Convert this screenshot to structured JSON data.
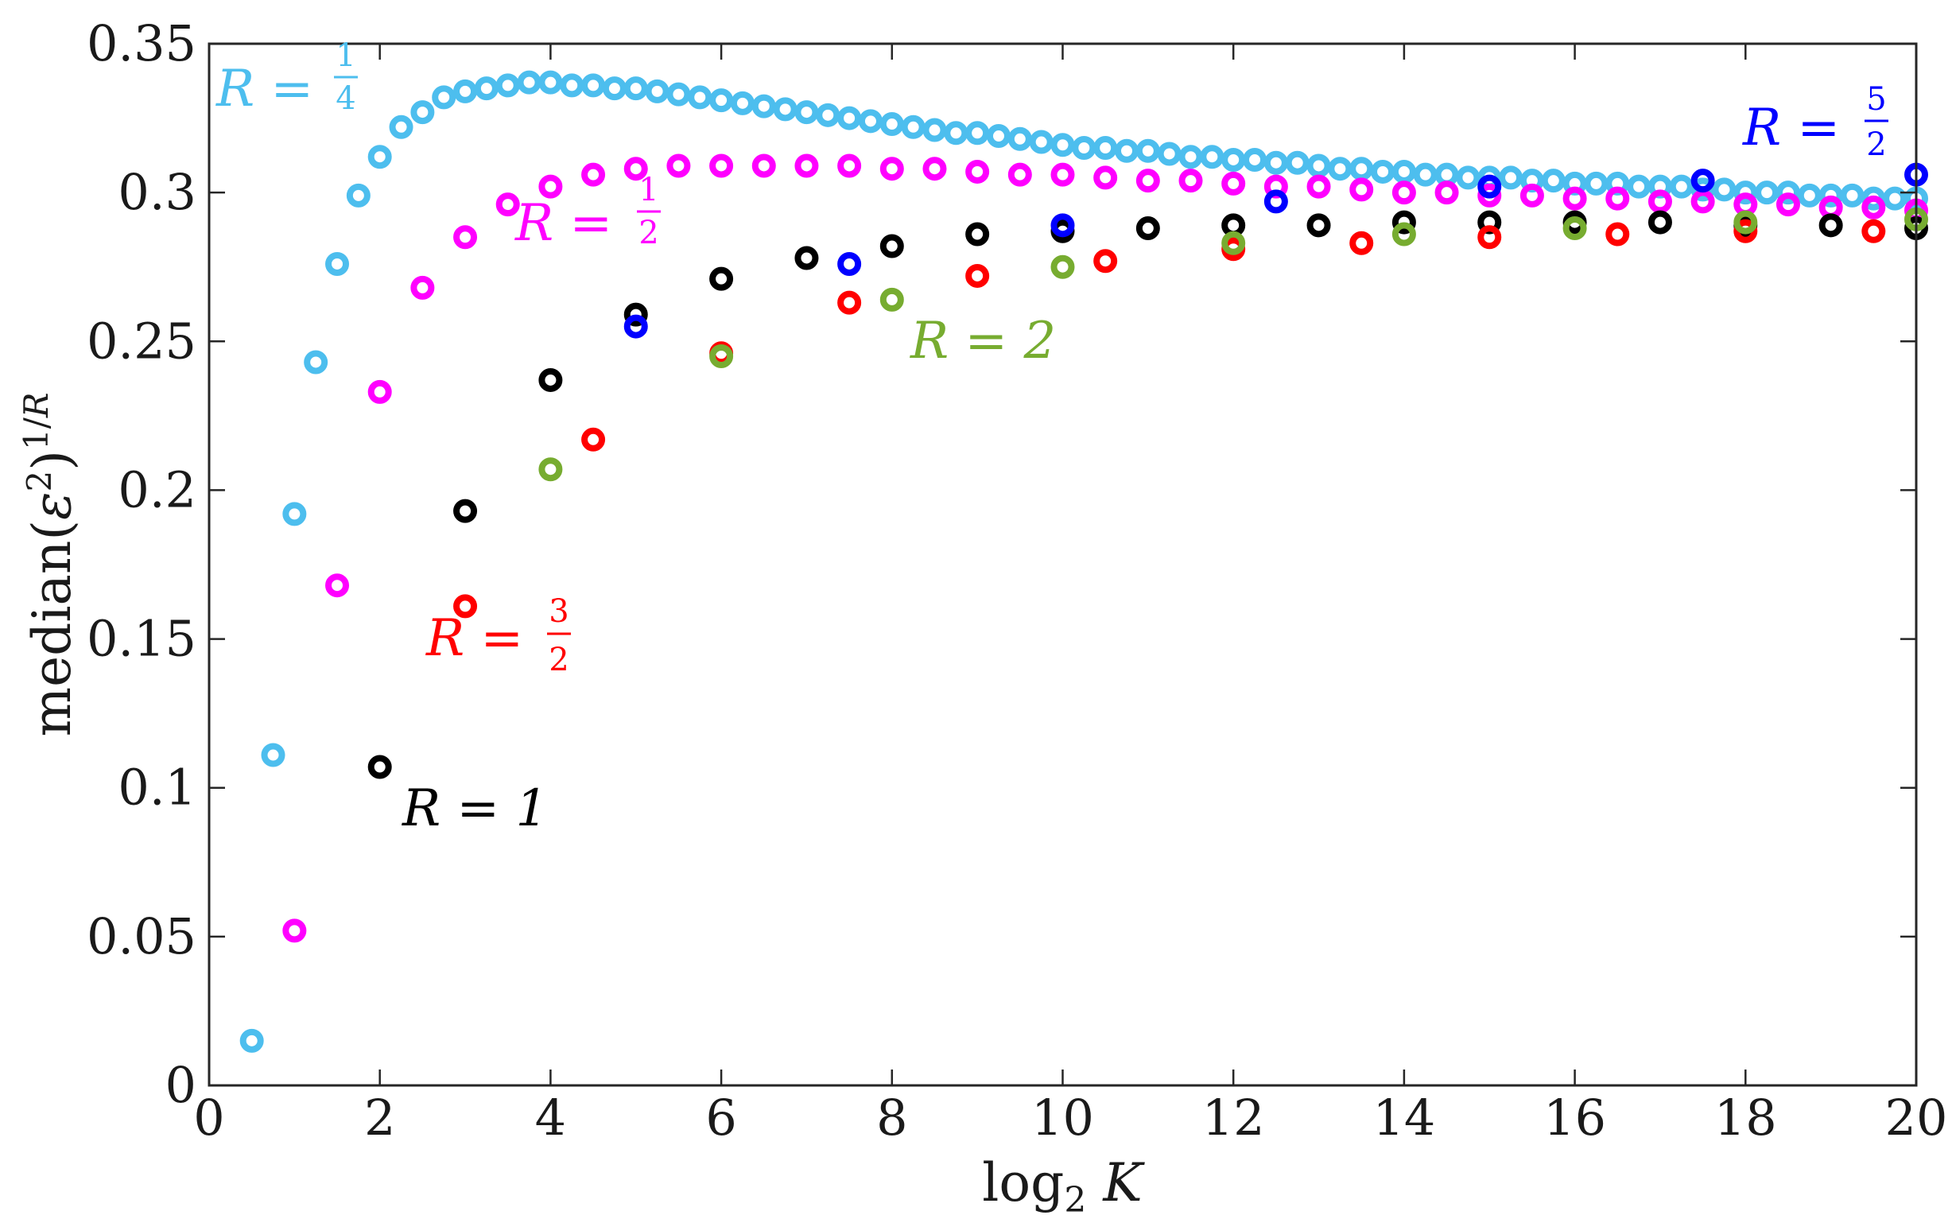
{
  "chart_data": {
    "type": "scatter",
    "title": "",
    "xlabel": "log₂ K",
    "ylabel": "median(ε²)^(1/R)",
    "xlim": [
      0,
      20
    ],
    "ylim": [
      0,
      0.35
    ],
    "x_ticks": [
      "0",
      "2",
      "4",
      "6",
      "8",
      "10",
      "12",
      "14",
      "16",
      "18",
      "20"
    ],
    "y_ticks": [
      "0",
      "0.05",
      "0.1",
      "0.15",
      "0.2",
      "0.25",
      "0.3",
      "0.35"
    ],
    "grid": false,
    "marker": "open-circle",
    "series": [
      {
        "name": "R = 1/4",
        "label_main": "R =",
        "label_num": "1",
        "label_den": "4",
        "color": "#4DBEEE",
        "points": [
          [
            0.5,
            0.015
          ],
          [
            0.75,
            0.111
          ],
          [
            1.0,
            0.192
          ],
          [
            1.25,
            0.243
          ],
          [
            1.5,
            0.276
          ],
          [
            1.75,
            0.299
          ],
          [
            2.0,
            0.312
          ],
          [
            2.25,
            0.322
          ],
          [
            2.5,
            0.327
          ],
          [
            2.75,
            0.332
          ],
          [
            3.0,
            0.334
          ],
          [
            3.25,
            0.335
          ],
          [
            3.5,
            0.336
          ],
          [
            3.75,
            0.337
          ],
          [
            4.0,
            0.337
          ],
          [
            4.25,
            0.336
          ],
          [
            4.5,
            0.336
          ],
          [
            4.75,
            0.335
          ],
          [
            5.0,
            0.335
          ],
          [
            5.25,
            0.334
          ],
          [
            5.5,
            0.333
          ],
          [
            5.75,
            0.332
          ],
          [
            6.0,
            0.331
          ],
          [
            6.25,
            0.33
          ],
          [
            6.5,
            0.329
          ],
          [
            6.75,
            0.328
          ],
          [
            7.0,
            0.327
          ],
          [
            7.25,
            0.326
          ],
          [
            7.5,
            0.325
          ],
          [
            7.75,
            0.324
          ],
          [
            8.0,
            0.323
          ],
          [
            8.25,
            0.322
          ],
          [
            8.5,
            0.321
          ],
          [
            8.75,
            0.32
          ],
          [
            9.0,
            0.32
          ],
          [
            9.25,
            0.319
          ],
          [
            9.5,
            0.318
          ],
          [
            9.75,
            0.317
          ],
          [
            10.0,
            0.316
          ],
          [
            10.25,
            0.315
          ],
          [
            10.5,
            0.315
          ],
          [
            10.75,
            0.314
          ],
          [
            11.0,
            0.314
          ],
          [
            11.25,
            0.313
          ],
          [
            11.5,
            0.312
          ],
          [
            11.75,
            0.312
          ],
          [
            12.0,
            0.311
          ],
          [
            12.25,
            0.311
          ],
          [
            12.5,
            0.31
          ],
          [
            12.75,
            0.31
          ],
          [
            13.0,
            0.309
          ],
          [
            13.25,
            0.308
          ],
          [
            13.5,
            0.308
          ],
          [
            13.75,
            0.307
          ],
          [
            14.0,
            0.307
          ],
          [
            14.25,
            0.306
          ],
          [
            14.5,
            0.306
          ],
          [
            14.75,
            0.305
          ],
          [
            15.0,
            0.305
          ],
          [
            15.25,
            0.305
          ],
          [
            15.5,
            0.304
          ],
          [
            15.75,
            0.304
          ],
          [
            16.0,
            0.303
          ],
          [
            16.25,
            0.303
          ],
          [
            16.5,
            0.303
          ],
          [
            16.75,
            0.302
          ],
          [
            17.0,
            0.302
          ],
          [
            17.25,
            0.302
          ],
          [
            17.5,
            0.301
          ],
          [
            17.75,
            0.301
          ],
          [
            18.0,
            0.3
          ],
          [
            18.25,
            0.3
          ],
          [
            18.5,
            0.3
          ],
          [
            18.75,
            0.299
          ],
          [
            19.0,
            0.299
          ],
          [
            19.25,
            0.299
          ],
          [
            19.5,
            0.298
          ],
          [
            19.75,
            0.298
          ],
          [
            20.0,
            0.298
          ]
        ]
      },
      {
        "name": "R = 1/2",
        "label_main": "R =",
        "label_num": "1",
        "label_den": "2",
        "color": "#FF00FF",
        "points": [
          [
            1.0,
            0.052
          ],
          [
            1.5,
            0.168
          ],
          [
            2.0,
            0.233
          ],
          [
            2.5,
            0.268
          ],
          [
            3.0,
            0.285
          ],
          [
            3.5,
            0.296
          ],
          [
            4.0,
            0.302
          ],
          [
            4.5,
            0.306
          ],
          [
            5.0,
            0.308
          ],
          [
            5.5,
            0.309
          ],
          [
            6.0,
            0.309
          ],
          [
            6.5,
            0.309
          ],
          [
            7.0,
            0.309
          ],
          [
            7.5,
            0.309
          ],
          [
            8.0,
            0.308
          ],
          [
            8.5,
            0.308
          ],
          [
            9.0,
            0.307
          ],
          [
            9.5,
            0.306
          ],
          [
            10.0,
            0.306
          ],
          [
            10.5,
            0.305
          ],
          [
            11.0,
            0.304
          ],
          [
            11.5,
            0.304
          ],
          [
            12.0,
            0.303
          ],
          [
            12.5,
            0.302
          ],
          [
            13.0,
            0.302
          ],
          [
            13.5,
            0.301
          ],
          [
            14.0,
            0.3
          ],
          [
            14.5,
            0.3
          ],
          [
            15.0,
            0.299
          ],
          [
            15.5,
            0.299
          ],
          [
            16.0,
            0.298
          ],
          [
            16.5,
            0.298
          ],
          [
            17.0,
            0.297
          ],
          [
            17.5,
            0.297
          ],
          [
            18.0,
            0.296
          ],
          [
            18.5,
            0.296
          ],
          [
            19.0,
            0.295
          ],
          [
            19.5,
            0.295
          ],
          [
            20.0,
            0.294
          ]
        ]
      },
      {
        "name": "R = 1",
        "label_main": "R = 1",
        "color": "#000000",
        "points": [
          [
            2,
            0.107
          ],
          [
            3,
            0.193
          ],
          [
            4,
            0.237
          ],
          [
            5,
            0.259
          ],
          [
            6,
            0.271
          ],
          [
            7,
            0.278
          ],
          [
            8,
            0.282
          ],
          [
            9,
            0.286
          ],
          [
            10,
            0.287
          ],
          [
            11,
            0.288
          ],
          [
            12,
            0.289
          ],
          [
            13,
            0.289
          ],
          [
            14,
            0.29
          ],
          [
            15,
            0.29
          ],
          [
            16,
            0.29
          ],
          [
            17,
            0.29
          ],
          [
            18,
            0.289
          ],
          [
            19,
            0.289
          ],
          [
            20,
            0.288
          ]
        ]
      },
      {
        "name": "R = 3/2",
        "label_main": "R =",
        "label_num": "3",
        "label_den": "2",
        "color": "#FF0000",
        "points": [
          [
            3.0,
            0.161
          ],
          [
            4.5,
            0.217
          ],
          [
            6.0,
            0.246
          ],
          [
            7.5,
            0.263
          ],
          [
            9.0,
            0.272
          ],
          [
            10.5,
            0.277
          ],
          [
            12.0,
            0.281
          ],
          [
            13.5,
            0.283
          ],
          [
            15.0,
            0.285
          ],
          [
            16.5,
            0.286
          ],
          [
            18.0,
            0.287
          ],
          [
            19.5,
            0.287
          ]
        ]
      },
      {
        "name": "R = 2",
        "label_main": "R = 2",
        "color": "#77AC30",
        "points": [
          [
            4,
            0.207
          ],
          [
            6,
            0.245
          ],
          [
            8,
            0.264
          ],
          [
            10,
            0.275
          ],
          [
            12,
            0.283
          ],
          [
            14,
            0.286
          ],
          [
            16,
            0.288
          ],
          [
            18,
            0.29
          ],
          [
            20,
            0.291
          ]
        ]
      },
      {
        "name": "R = 5/2",
        "label_main": "R =",
        "label_num": "5",
        "label_den": "2",
        "color": "#0000FF",
        "points": [
          [
            5.0,
            0.255
          ],
          [
            7.5,
            0.276
          ],
          [
            10.0,
            0.289
          ],
          [
            12.5,
            0.297
          ],
          [
            15.0,
            0.302
          ],
          [
            17.5,
            0.304
          ],
          [
            20.0,
            0.306
          ]
        ]
      }
    ]
  }
}
